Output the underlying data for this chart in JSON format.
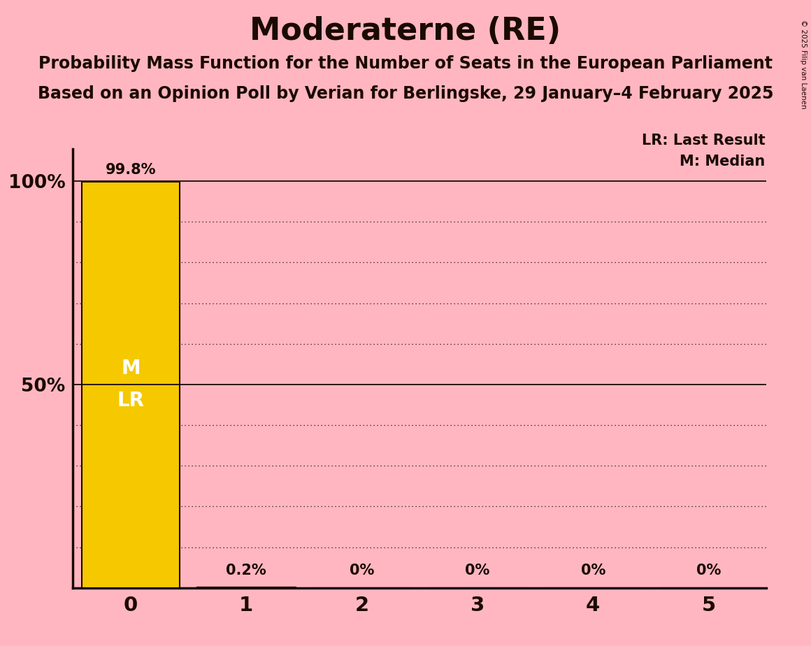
{
  "title": "Moderaterne (RE)",
  "subtitle1": "Probability Mass Function for the Number of Seats in the European Parliament",
  "subtitle2": "Based on an Opinion Poll by Verian for Berlingske, 29 January–4 February 2025",
  "copyright": "© 2025 Filip van Laenen",
  "seats": [
    0,
    1,
    2,
    3,
    4,
    5
  ],
  "probabilities": [
    99.8,
    0.2,
    0.0,
    0.0,
    0.0,
    0.0
  ],
  "bar_color": "#F5C800",
  "bar_edge_color": "#1a0a00",
  "background_color": "#FFB6C1",
  "text_color": "#1a0a00",
  "white_text": "#FFFFFF",
  "legend_lr": "LR: Last Result",
  "legend_m": "M: Median",
  "yticks_dotted": [
    10,
    20,
    30,
    40,
    60,
    70,
    80,
    90
  ],
  "yticks_solid": [
    50,
    100
  ],
  "ylabel_ticks": [
    50,
    100
  ],
  "ylim": [
    0,
    108
  ],
  "xlim": [
    -0.5,
    5.5
  ],
  "bar_width": 0.85
}
